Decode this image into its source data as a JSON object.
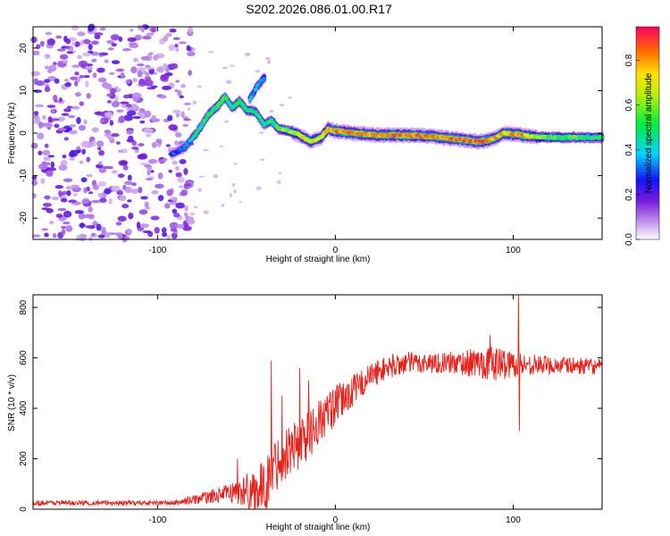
{
  "title": "S202.2026.086.01.00.R17",
  "chart_data": [
    {
      "type": "heatmap",
      "xlabel": "Height of straight line (km)",
      "ylabel": "Frequency (Hz)",
      "xlim": [
        -170,
        150
      ],
      "ylim": [
        -25,
        25
      ],
      "xticks": [
        -100,
        0,
        100
      ],
      "yticks": [
        -20,
        -10,
        0,
        10,
        20
      ],
      "colorbar": {
        "label": "Normalized spectral amplitude",
        "range": [
          0,
          0.95
        ],
        "ticks": [
          0.0,
          0.2,
          0.4,
          0.6,
          0.8
        ]
      },
      "noise_region_x": [
        -170,
        -85
      ],
      "ridge": [
        {
          "x": -92,
          "f": -5.0,
          "a": 0.25
        },
        {
          "x": -85,
          "f": -3.5,
          "a": 0.35
        },
        {
          "x": -78,
          "f": 0.0,
          "a": 0.45
        },
        {
          "x": -72,
          "f": 4.0,
          "a": 0.5
        },
        {
          "x": -66,
          "f": 6.5,
          "a": 0.55
        },
        {
          "x": -62,
          "f": 8.5,
          "a": 0.5
        },
        {
          "x": -58,
          "f": 6.0,
          "a": 0.45
        },
        {
          "x": -54,
          "f": 7.5,
          "a": 0.5
        },
        {
          "x": -50,
          "f": 5.5,
          "a": 0.5
        },
        {
          "x": -45,
          "f": 5.0,
          "a": 0.45
        },
        {
          "x": -40,
          "f": 2.0,
          "a": 0.45
        },
        {
          "x": -36,
          "f": 3.0,
          "a": 0.5
        },
        {
          "x": -32,
          "f": 1.0,
          "a": 0.55
        },
        {
          "x": -26,
          "f": 0.5,
          "a": 0.6
        },
        {
          "x": -20,
          "f": -0.5,
          "a": 0.7
        },
        {
          "x": -14,
          "f": -2.0,
          "a": 0.7
        },
        {
          "x": -8,
          "f": -1.0,
          "a": 0.7
        },
        {
          "x": -4,
          "f": 1.0,
          "a": 0.75
        },
        {
          "x": 0,
          "f": 0.5,
          "a": 0.85
        },
        {
          "x": 10,
          "f": 0.0,
          "a": 0.8
        },
        {
          "x": 25,
          "f": -0.5,
          "a": 0.8
        },
        {
          "x": 40,
          "f": -0.5,
          "a": 0.85
        },
        {
          "x": 55,
          "f": -0.8,
          "a": 0.8
        },
        {
          "x": 70,
          "f": -1.5,
          "a": 0.85
        },
        {
          "x": 80,
          "f": -2.0,
          "a": 0.85
        },
        {
          "x": 88,
          "f": -1.5,
          "a": 0.8
        },
        {
          "x": 95,
          "f": 0.0,
          "a": 0.75
        },
        {
          "x": 105,
          "f": -0.5,
          "a": 0.85
        },
        {
          "x": 115,
          "f": -1.0,
          "a": 0.6
        },
        {
          "x": 130,
          "f": -1.0,
          "a": 0.55
        },
        {
          "x": 150,
          "f": -1.0,
          "a": 0.5
        }
      ],
      "upper_branch": [
        {
          "x": -48,
          "f": 8.0,
          "a": 0.35
        },
        {
          "x": -44,
          "f": 11.0,
          "a": 0.4
        },
        {
          "x": -40,
          "f": 13.0,
          "a": 0.35
        }
      ]
    },
    {
      "type": "line",
      "xlabel": "Height of straight line (km)",
      "ylabel": "SNR (10 * v/v)",
      "xlim": [
        -170,
        150
      ],
      "ylim": [
        0,
        850
      ],
      "xticks": [
        -100,
        0,
        100
      ],
      "yticks": [
        0,
        200,
        400,
        600,
        800
      ],
      "color": "#e8201a",
      "trend": [
        {
          "x": -170,
          "y": 25
        },
        {
          "x": -90,
          "y": 25
        },
        {
          "x": -70,
          "y": 50
        },
        {
          "x": -60,
          "y": 65
        },
        {
          "x": -40,
          "y": 80
        },
        {
          "x": -35,
          "y": 160
        },
        {
          "x": -30,
          "y": 220
        },
        {
          "x": -20,
          "y": 260
        },
        {
          "x": -10,
          "y": 340
        },
        {
          "x": 0,
          "y": 410
        },
        {
          "x": 10,
          "y": 470
        },
        {
          "x": 20,
          "y": 530
        },
        {
          "x": 30,
          "y": 565
        },
        {
          "x": 40,
          "y": 580
        },
        {
          "x": 80,
          "y": 580
        },
        {
          "x": 150,
          "y": 565
        }
      ],
      "noise_amplitude": [
        {
          "x": -170,
          "a": 10
        },
        {
          "x": -90,
          "a": 10
        },
        {
          "x": -60,
          "a": 35
        },
        {
          "x": -40,
          "a": 110
        },
        {
          "x": -20,
          "a": 110
        },
        {
          "x": 0,
          "a": 80
        },
        {
          "x": 20,
          "a": 50
        },
        {
          "x": 60,
          "a": 40
        },
        {
          "x": 90,
          "a": 70
        },
        {
          "x": 110,
          "a": 40
        },
        {
          "x": 150,
          "a": 30
        }
      ],
      "spikes": [
        {
          "x": -55,
          "y": 200
        },
        {
          "x": -36,
          "y": 590
        },
        {
          "x": -30,
          "y": 450
        },
        {
          "x": -20,
          "y": 560
        },
        {
          "x": -15,
          "y": 510
        },
        {
          "x": 103,
          "y": 850
        },
        {
          "x": 103.5,
          "y": 310
        },
        {
          "x": 87,
          "y": 690
        }
      ]
    }
  ]
}
